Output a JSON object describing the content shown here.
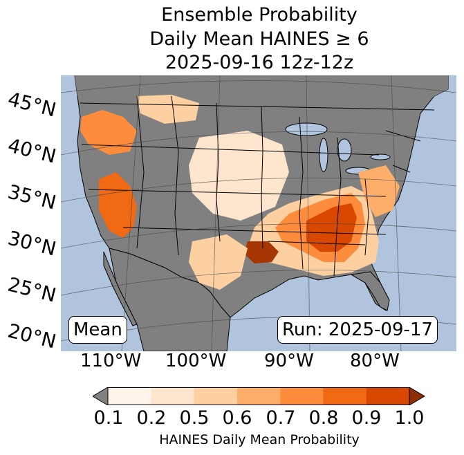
{
  "title": {
    "line1": "Ensemble Probability",
    "line2": "Daily Mean HAINES ≥ 6",
    "line3": "2025-09-16 12z-12z"
  },
  "map": {
    "lat_labels": [
      "45°N",
      "40°N",
      "35°N",
      "30°N",
      "25°N",
      "20°N"
    ],
    "lon_labels": [
      "110°W",
      "100°W",
      "90°W",
      "80°W"
    ],
    "mean_label": "Mean",
    "run_label": "Run: 2025-09-17",
    "colors": {
      "ocean": "#b0c4de",
      "land_no_data": "#808080",
      "bins": [
        "#fff5eb",
        "#fee6ce",
        "#fdd0a2",
        "#fdae6b",
        "#fd8d3c",
        "#f16913",
        "#d94801",
        "#a63603"
      ]
    }
  },
  "colorbar": {
    "ticks": [
      "0.1",
      "0.2",
      "0.5",
      "0.6",
      "0.7",
      "0.8",
      "0.9",
      "1.0"
    ],
    "colors": [
      "#fff5eb",
      "#fee6ce",
      "#fdd0a2",
      "#fdae6b",
      "#fd8d3c",
      "#f16913",
      "#d94801"
    ],
    "under_color": "#808080",
    "over_color": "#8c2d04",
    "label": "HAINES Daily Mean Probability"
  }
}
